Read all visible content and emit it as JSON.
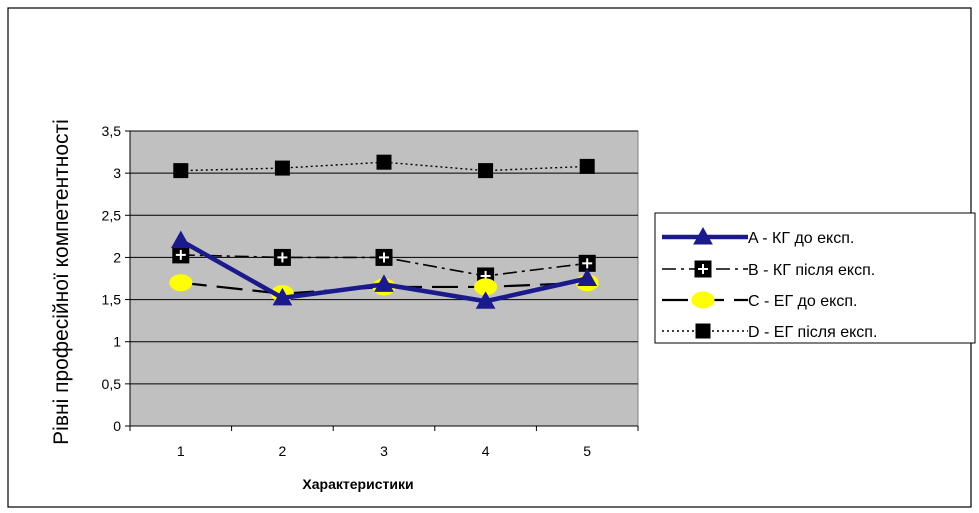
{
  "chart_data": {
    "type": "line",
    "title": "",
    "xlabel": "Характеристики",
    "ylabel": "Рівні професійної компетентності",
    "categories": [
      "1",
      "2",
      "3",
      "4",
      "5"
    ],
    "ylim": [
      0,
      3.5
    ],
    "yticks": [
      "0",
      "0,5",
      "1",
      "1,5",
      "2",
      "2,5",
      "3",
      "3,5"
    ],
    "grid": true,
    "legend_position": "right",
    "series": [
      {
        "name": "A - КГ до експ.",
        "values": [
          2.2,
          1.52,
          1.68,
          1.48,
          1.75
        ],
        "color": "#1a1a8c",
        "marker": "triangle",
        "line": "solid"
      },
      {
        "name": "B - КГ після експ.",
        "values": [
          2.03,
          2.0,
          2.0,
          1.78,
          1.93
        ],
        "color": "#000000",
        "marker": "square-cross",
        "line": "dash-dot"
      },
      {
        "name": "C - ЕГ до експ.",
        "values": [
          1.7,
          1.57,
          1.65,
          1.65,
          1.7
        ],
        "color": "#000000",
        "marker": "circle-yellow",
        "line": "long-dash"
      },
      {
        "name": "D - ЕГ після експ.",
        "values": [
          3.03,
          3.06,
          3.13,
          3.03,
          3.08
        ],
        "color": "#000000",
        "marker": "square",
        "line": "dotted"
      }
    ]
  }
}
